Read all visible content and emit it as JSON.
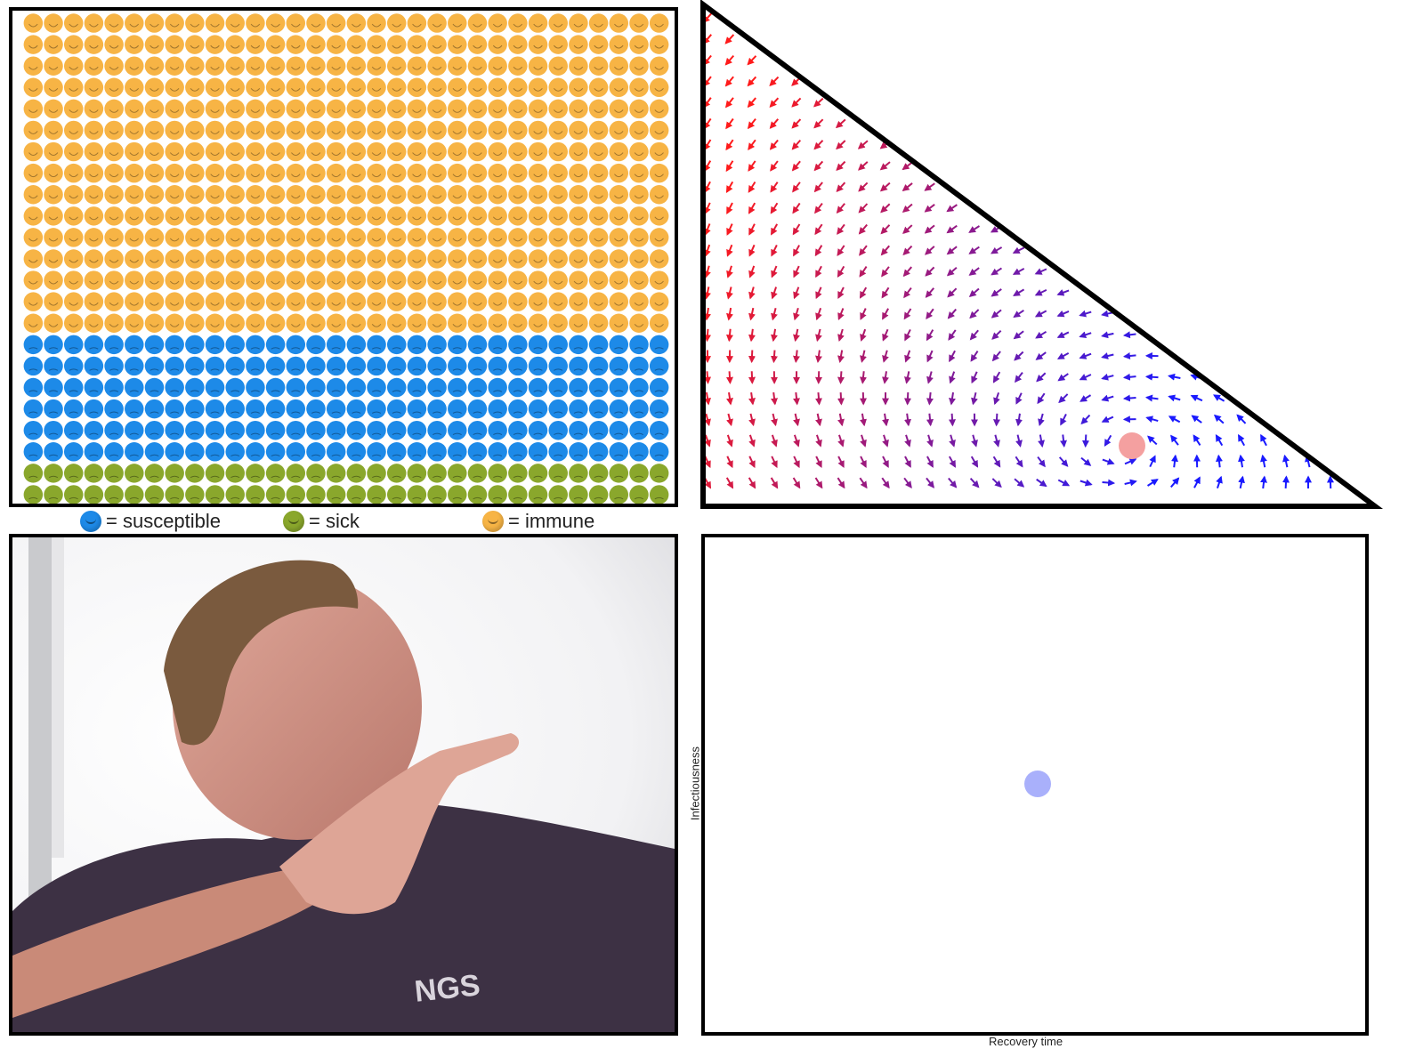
{
  "population_grid": {
    "columns": 32,
    "rows": 23,
    "immune_rows": 15,
    "susceptible_rows": 6,
    "sick_rows": 2,
    "colors": {
      "immune": "#f7b445",
      "susceptible": "#1d8ae8",
      "sick": "#8aa72c"
    }
  },
  "legend": {
    "items": [
      {
        "key": "susceptible",
        "label": "= susceptible",
        "color": "#1d8ae8",
        "icon": "sad-face-icon"
      },
      {
        "key": "sick",
        "label": "= sick",
        "color": "#8aa72c",
        "icon": "sick-face-icon"
      },
      {
        "key": "immune",
        "label": "= immune",
        "color": "#f7b445",
        "icon": "smiling-face-icon"
      }
    ]
  },
  "phase_portrait": {
    "arrow_colors": {
      "start": "#ff1a1a",
      "end": "#1a1aff"
    },
    "current_state_color": "#f4a0a0"
  },
  "video": {
    "shirt_text": "NGS"
  },
  "parameter_plot": {
    "xlabel": "Recovery time",
    "ylabel": "Infectiousness",
    "point_color": "#a9b0fb"
  }
}
